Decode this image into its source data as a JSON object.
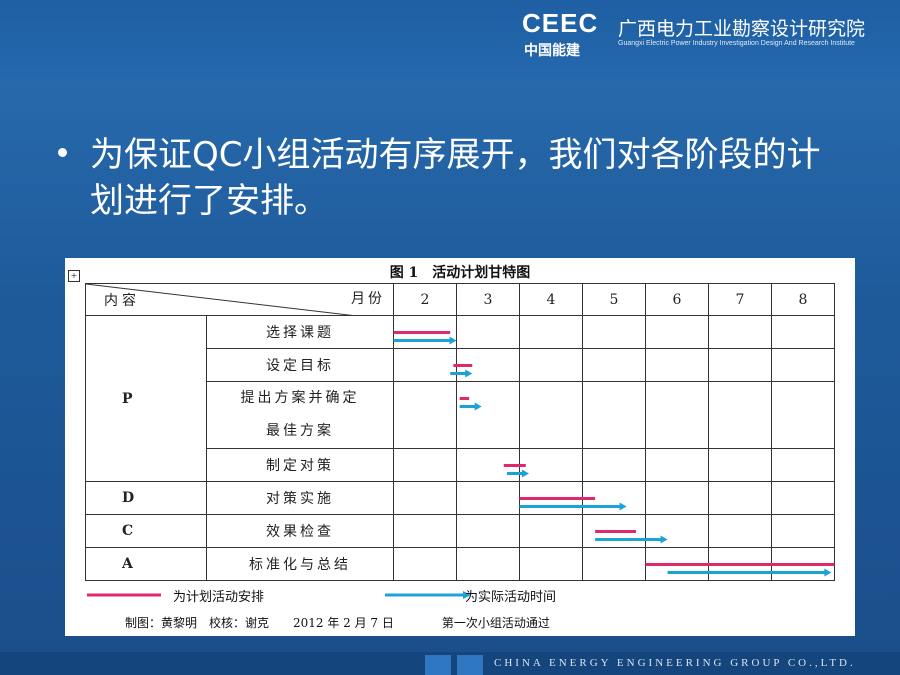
{
  "header": {
    "logo_text": "CEEC",
    "logo_cn": "中国能建",
    "org_name_cn": "广西电力工业勘察设计研究院",
    "org_name_en": "Guangxi Electric Power Industry Investigation Design And Research Institute"
  },
  "bullet": {
    "text": "为保证QC小组活动有序展开，我们对各阶段的计划进行了安排。"
  },
  "figure": {
    "title": "图 1　活动计划甘特图",
    "header_left": "内容",
    "header_right": "月份",
    "months": [
      "2",
      "3",
      "4",
      "5",
      "6",
      "7",
      "8"
    ],
    "rows": [
      {
        "phase": "",
        "task": "选择课题",
        "plan": [
          2.0,
          2.9
        ],
        "actual": [
          2.0,
          3.0
        ]
      },
      {
        "phase": "",
        "task": "设定目标",
        "plan": [
          2.95,
          3.25
        ],
        "actual": [
          2.9,
          3.25
        ]
      },
      {
        "phase": "P",
        "task": "提出方案并确定",
        "task2": "最佳方案",
        "plan": [
          3.05,
          3.2
        ],
        "actual": [
          3.05,
          3.4
        ]
      },
      {
        "phase": "",
        "task": "制定对策",
        "plan": [
          3.75,
          4.1
        ],
        "actual": [
          3.8,
          4.15
        ]
      },
      {
        "phase": "D",
        "task": "对策实施",
        "plan": [
          4.0,
          5.2
        ],
        "actual": [
          4.0,
          5.7
        ]
      },
      {
        "phase": "C",
        "task": "效果检查",
        "plan": [
          5.2,
          5.85
        ],
        "actual": [
          5.2,
          6.35
        ]
      },
      {
        "phase": "A",
        "task": "标准化与总结",
        "plan": [
          6.0,
          9.0
        ],
        "actual": [
          6.35,
          8.95
        ]
      }
    ],
    "legend_plan": "为计划活动安排",
    "legend_actual": "为实际活动时间",
    "credits": "制图：黄黎明　校核：谢克　　2012 年 2 月 7 日　　　　第一次小组活动通过",
    "plan_color": "#e0286e",
    "actual_color": "#1ba3d8"
  },
  "footer": {
    "company_en": "CHINA ENERGY ENGINEERING GROUP CO.,LTD."
  }
}
